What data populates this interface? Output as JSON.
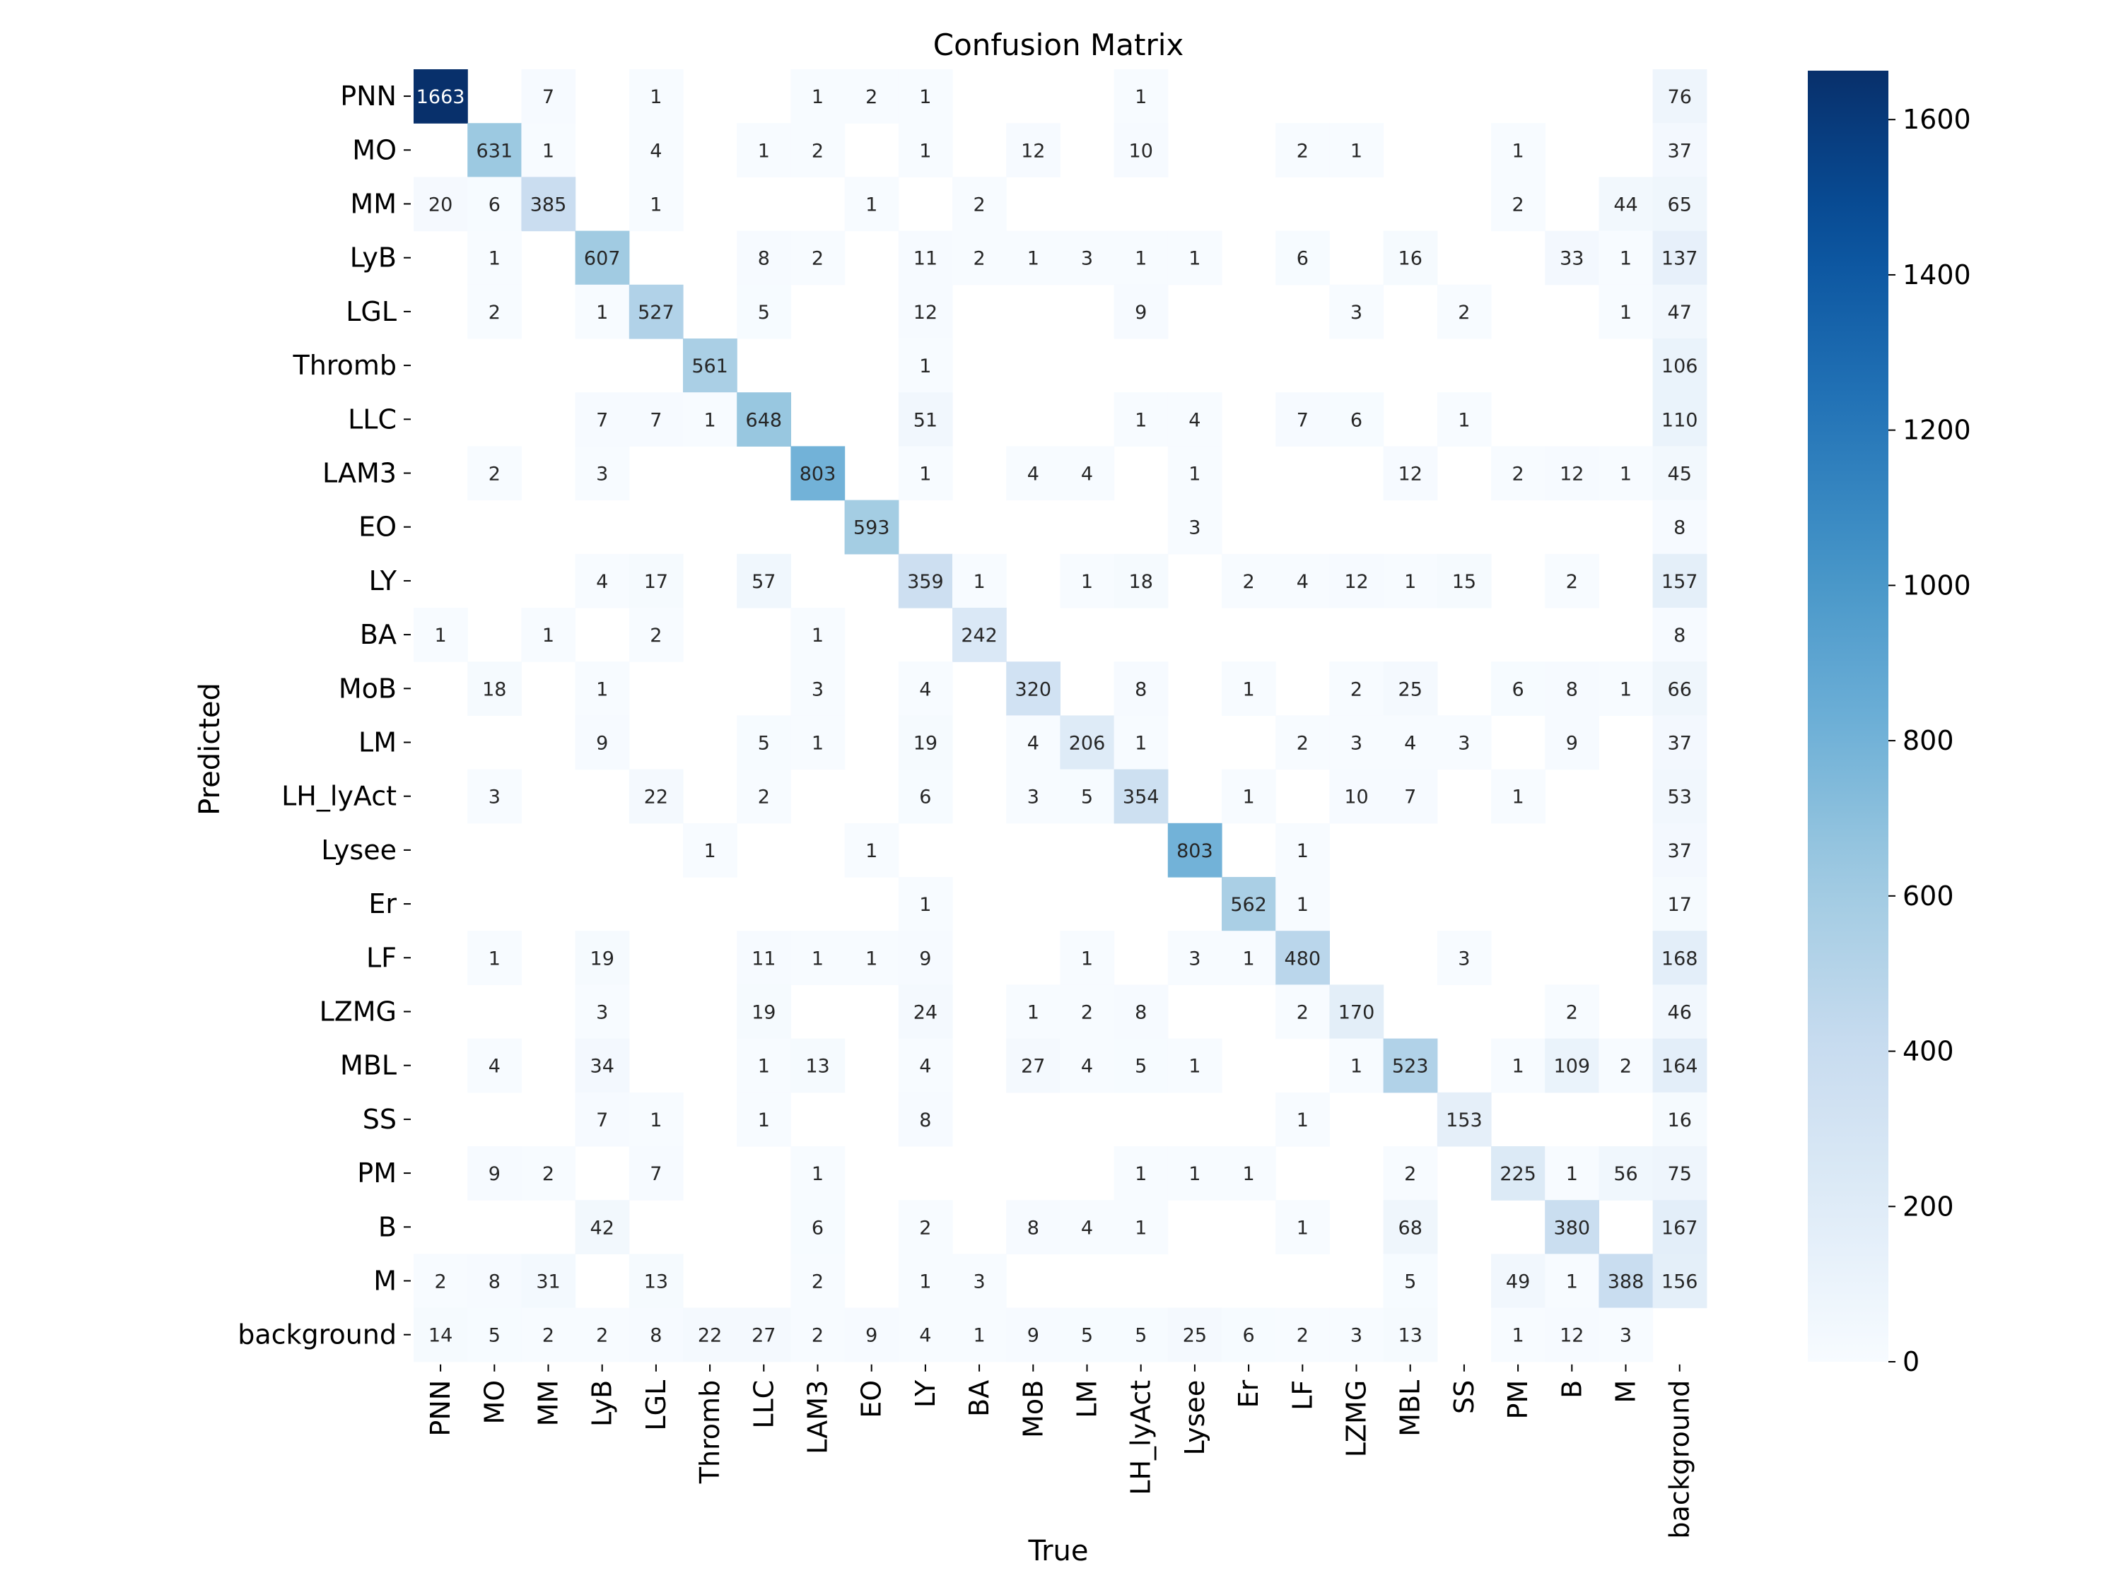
{
  "chart_data": {
    "type": "heatmap",
    "title": "Confusion Matrix",
    "xlabel": "True",
    "ylabel": "Predicted",
    "x_categories": [
      "PNN",
      "MO",
      "MM",
      "LyB",
      "LGL",
      "Thromb",
      "LLC",
      "LAM3",
      "EO",
      "LY",
      "BA",
      "MoB",
      "LM",
      "LH_lyAct",
      "Lysee",
      "Er",
      "LF",
      "LZMG",
      "MBL",
      "SS",
      "PM",
      "B",
      "M",
      "background"
    ],
    "y_categories": [
      "PNN",
      "MO",
      "MM",
      "LyB",
      "LGL",
      "Thromb",
      "LLC",
      "LAM3",
      "EO",
      "LY",
      "BA",
      "MoB",
      "LM",
      "LH_lyAct",
      "Lysee",
      "Er",
      "LF",
      "LZMG",
      "MBL",
      "SS",
      "PM",
      "B",
      "M",
      "background"
    ],
    "values": [
      [
        1663,
        null,
        7,
        null,
        1,
        null,
        null,
        1,
        2,
        1,
        null,
        null,
        null,
        1,
        null,
        null,
        null,
        null,
        null,
        null,
        null,
        null,
        null,
        76
      ],
      [
        null,
        631,
        1,
        null,
        4,
        null,
        1,
        2,
        null,
        1,
        null,
        12,
        null,
        10,
        null,
        null,
        2,
        1,
        null,
        null,
        1,
        null,
        null,
        37
      ],
      [
        20,
        6,
        385,
        null,
        1,
        null,
        null,
        null,
        1,
        null,
        2,
        null,
        null,
        null,
        null,
        null,
        null,
        null,
        null,
        null,
        2,
        null,
        44,
        65
      ],
      [
        null,
        1,
        null,
        607,
        null,
        null,
        8,
        2,
        null,
        11,
        2,
        1,
        3,
        1,
        1,
        null,
        6,
        null,
        16,
        null,
        null,
        33,
        1,
        137
      ],
      [
        null,
        2,
        null,
        1,
        527,
        null,
        5,
        null,
        null,
        12,
        null,
        null,
        null,
        9,
        null,
        null,
        null,
        3,
        null,
        2,
        null,
        null,
        1,
        47
      ],
      [
        null,
        null,
        null,
        null,
        null,
        561,
        null,
        null,
        null,
        1,
        null,
        null,
        null,
        null,
        null,
        null,
        null,
        null,
        null,
        null,
        null,
        null,
        null,
        106
      ],
      [
        null,
        null,
        null,
        7,
        7,
        1,
        648,
        null,
        null,
        51,
        null,
        null,
        null,
        1,
        4,
        null,
        7,
        6,
        null,
        1,
        null,
        null,
        null,
        110
      ],
      [
        null,
        2,
        null,
        3,
        null,
        null,
        null,
        803,
        null,
        1,
        null,
        4,
        4,
        null,
        1,
        null,
        null,
        null,
        12,
        null,
        2,
        12,
        1,
        45
      ],
      [
        null,
        null,
        null,
        null,
        null,
        null,
        null,
        null,
        593,
        null,
        null,
        null,
        null,
        null,
        3,
        null,
        null,
        null,
        null,
        null,
        null,
        null,
        null,
        8
      ],
      [
        null,
        null,
        null,
        4,
        17,
        null,
        57,
        null,
        null,
        359,
        1,
        null,
        1,
        18,
        null,
        2,
        4,
        12,
        1,
        15,
        null,
        2,
        null,
        157
      ],
      [
        1,
        null,
        1,
        null,
        2,
        null,
        null,
        1,
        null,
        null,
        242,
        null,
        null,
        null,
        null,
        null,
        null,
        null,
        null,
        null,
        null,
        null,
        null,
        8
      ],
      [
        null,
        18,
        null,
        1,
        null,
        null,
        null,
        3,
        null,
        4,
        null,
        320,
        null,
        8,
        null,
        1,
        null,
        2,
        25,
        null,
        6,
        8,
        1,
        66
      ],
      [
        null,
        null,
        null,
        9,
        null,
        null,
        5,
        1,
        null,
        19,
        null,
        4,
        206,
        1,
        null,
        null,
        2,
        3,
        4,
        3,
        null,
        9,
        null,
        37
      ],
      [
        null,
        3,
        null,
        null,
        22,
        null,
        2,
        null,
        null,
        6,
        null,
        3,
        5,
        354,
        null,
        1,
        null,
        10,
        7,
        null,
        1,
        null,
        null,
        53
      ],
      [
        null,
        null,
        null,
        null,
        null,
        1,
        null,
        null,
        1,
        null,
        null,
        null,
        null,
        null,
        803,
        null,
        1,
        null,
        null,
        null,
        null,
        null,
        null,
        37
      ],
      [
        null,
        null,
        null,
        null,
        null,
        null,
        null,
        null,
        null,
        1,
        null,
        null,
        null,
        null,
        null,
        562,
        1,
        null,
        null,
        null,
        null,
        null,
        null,
        17
      ],
      [
        null,
        1,
        null,
        19,
        null,
        null,
        11,
        1,
        1,
        9,
        null,
        null,
        1,
        null,
        3,
        1,
        480,
        null,
        null,
        3,
        null,
        null,
        null,
        168
      ],
      [
        null,
        null,
        null,
        3,
        null,
        null,
        19,
        null,
        null,
        24,
        null,
        1,
        2,
        8,
        null,
        null,
        2,
        170,
        null,
        null,
        null,
        2,
        null,
        46
      ],
      [
        null,
        4,
        null,
        34,
        null,
        null,
        1,
        13,
        null,
        4,
        null,
        27,
        4,
        5,
        1,
        null,
        null,
        1,
        523,
        null,
        1,
        109,
        2,
        164
      ],
      [
        null,
        null,
        null,
        7,
        1,
        null,
        1,
        null,
        null,
        8,
        null,
        null,
        null,
        null,
        null,
        null,
        1,
        null,
        null,
        153,
        null,
        null,
        null,
        16
      ],
      [
        null,
        9,
        2,
        null,
        7,
        null,
        null,
        1,
        null,
        null,
        null,
        null,
        null,
        1,
        1,
        1,
        null,
        null,
        2,
        null,
        225,
        1,
        56,
        75
      ],
      [
        null,
        null,
        null,
        42,
        null,
        null,
        null,
        6,
        null,
        2,
        null,
        8,
        4,
        1,
        null,
        null,
        1,
        null,
        68,
        null,
        null,
        380,
        null,
        167
      ],
      [
        2,
        8,
        31,
        null,
        13,
        null,
        null,
        2,
        null,
        1,
        3,
        null,
        null,
        null,
        null,
        null,
        null,
        null,
        5,
        null,
        49,
        1,
        388,
        156
      ],
      [
        14,
        5,
        2,
        2,
        8,
        22,
        27,
        2,
        9,
        4,
        1,
        9,
        5,
        5,
        25,
        6,
        2,
        3,
        13,
        null,
        1,
        12,
        3,
        null
      ]
    ],
    "vmin": 0,
    "vmax": 1663,
    "colormap": "Blues",
    "colorbar_ticks": [
      0,
      200,
      400,
      600,
      800,
      1000,
      1200,
      1400,
      1600
    ]
  }
}
